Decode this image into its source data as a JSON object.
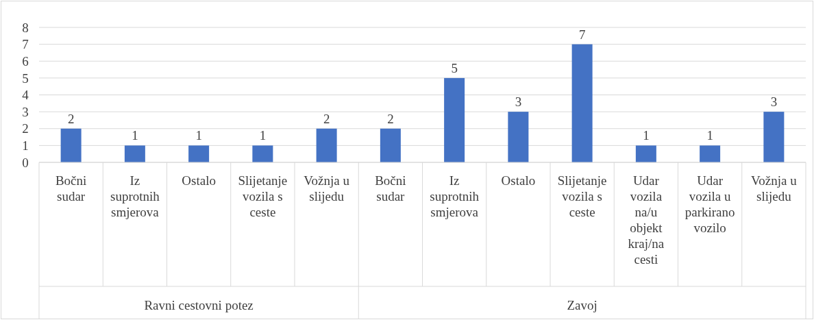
{
  "chart_data": {
    "type": "bar",
    "categories": [
      "Bočni sudar",
      "Iz suprotnih smjerova",
      "Ostalo",
      "Slijetanje vozila s ceste",
      "Vožnja u slijedu",
      "Bočni sudar",
      "Iz suprotnih smjerova",
      "Ostalo",
      "Slijetanje vozila s ceste",
      "Udar vozila na/u objekt kraj/na cesti",
      "Udar vozila u parkirano vozilo",
      "Vožnja u slijedu"
    ],
    "values": [
      2,
      1,
      1,
      1,
      2,
      2,
      5,
      3,
      7,
      1,
      1,
      3
    ],
    "color": "#4472c4",
    "ylim": [
      0,
      8
    ],
    "yticks": [
      0,
      1,
      2,
      3,
      4,
      5,
      6,
      7,
      8
    ],
    "grid": "y",
    "data_labels": true,
    "annotations": [
      "Ravni cestovni potez",
      "Zavoj"
    ]
  }
}
